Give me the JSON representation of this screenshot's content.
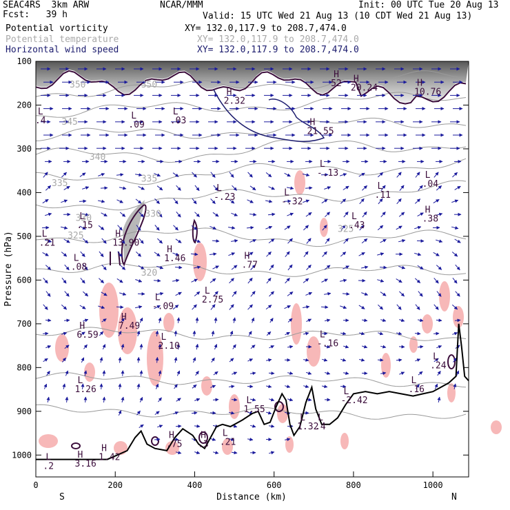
{
  "header": {
    "model": "SEAC4RS  3km ARW",
    "forecast": "Fcst:   39 h",
    "center": "NCAR/MMM",
    "init": "Init: 00 UTC Tue 20 Aug 13",
    "valid": "Valid: 15 UTC Wed 21 Aug 13 (10 CDT Wed 21 Aug 13)",
    "fields": [
      {
        "label": "Potential vorticity",
        "xy": "XY= 132.0,117.9 to 208.7,474.0",
        "color": "#000000"
      },
      {
        "label": "Potential temperature",
        "xy": "XY= 132.0,117.9 to 208.7,474.0",
        "color": "#a9a9a9"
      },
      {
        "label": "Horizontal wind speed",
        "xy": "XY= 132.0,117.9 to 208.7,474.0",
        "color": "#1c1c6e"
      }
    ]
  },
  "chart_data": {
    "type": "cross-section",
    "xlabel": "Distance (km)",
    "ylabel": "Pressure (hPa)",
    "xlim": [
      0,
      1090
    ],
    "ylim": [
      1050,
      100
    ],
    "xticks": [
      0,
      200,
      400,
      600,
      800,
      1000
    ],
    "yticks": [
      100,
      200,
      300,
      400,
      500,
      600,
      700,
      800,
      900,
      1000
    ],
    "end_labels": {
      "left": "S",
      "right": "N"
    },
    "theta_contours": [
      {
        "label": "350",
        "x": 85,
        "p": 160
      },
      {
        "label": "350",
        "x": 265,
        "p": 160
      },
      {
        "label": "345",
        "x": 65,
        "p": 245
      },
      {
        "label": "340",
        "x": 135,
        "p": 325
      },
      {
        "label": "335",
        "x": 40,
        "p": 385
      },
      {
        "label": "335",
        "x": 265,
        "p": 375
      },
      {
        "label": "330",
        "x": 100,
        "p": 465
      },
      {
        "label": "330",
        "x": 275,
        "p": 455
      },
      {
        "label": "325",
        "x": 80,
        "p": 505
      },
      {
        "label": "325",
        "x": 760,
        "p": 490
      },
      {
        "label": "320",
        "x": 265,
        "p": 590
      }
    ],
    "extrema": [
      {
        "type": "H",
        "value": "10.76",
        "x": 960,
        "p": 175
      },
      {
        "type": "H",
        "value": "20.24",
        "x": 800,
        "p": 165
      },
      {
        "type": "H",
        "value": "2.32",
        "x": 480,
        "p": 195
      },
      {
        "type": "H",
        "value": "52",
        "x": 750,
        "p": 155
      },
      {
        "type": "H",
        "value": "21.55",
        "x": 690,
        "p": 265
      },
      {
        "type": "L",
        "value": ".09",
        "x": 240,
        "p": 250
      },
      {
        "type": "L",
        "value": ".03",
        "x": 345,
        "p": 240
      },
      {
        "type": "L",
        "value": ".4",
        "x": 5,
        "p": 240
      },
      {
        "type": "L",
        "value": "-.13",
        "x": 715,
        "p": 360
      },
      {
        "type": "L",
        "value": ".04",
        "x": 980,
        "p": 385
      },
      {
        "type": "L",
        "value": "-.23",
        "x": 455,
        "p": 415
      },
      {
        "type": "L",
        "value": "-.32",
        "x": 625,
        "p": 425
      },
      {
        "type": "L",
        "value": ".11",
        "x": 860,
        "p": 410
      },
      {
        "type": "L",
        "value": ".15",
        "x": 110,
        "p": 480
      },
      {
        "type": "L",
        "value": ".21",
        "x": 15,
        "p": 520
      },
      {
        "type": "H",
        "value": "13.90",
        "x": 200,
        "p": 520
      },
      {
        "type": "L",
        "value": ".43",
        "x": 795,
        "p": 480
      },
      {
        "type": "H",
        "value": ".38",
        "x": 980,
        "p": 465
      },
      {
        "type": "H",
        "value": "1.46",
        "x": 330,
        "p": 555
      },
      {
        "type": "H",
        "value": ".77",
        "x": 525,
        "p": 570
      },
      {
        "type": "L",
        "value": ".08",
        "x": 95,
        "p": 575
      },
      {
        "type": "L",
        "value": "2.75",
        "x": 425,
        "p": 650
      },
      {
        "type": "L",
        "value": "-.09",
        "x": 300,
        "p": 665
      },
      {
        "type": "H",
        "value": "7.49",
        "x": 215,
        "p": 710
      },
      {
        "type": "H",
        "value": "6.59",
        "x": 110,
        "p": 730
      },
      {
        "type": "L",
        "value": "2.10",
        "x": 315,
        "p": 755
      },
      {
        "type": "L",
        "value": "-.16",
        "x": 715,
        "p": 750
      },
      {
        "type": "L",
        "value": ".24",
        "x": 1000,
        "p": 800
      },
      {
        "type": "L",
        "value": "1.26",
        "x": 105,
        "p": 855
      },
      {
        "type": "L",
        "value": ".16",
        "x": 945,
        "p": 855
      },
      {
        "type": "L",
        "value": "-2.42",
        "x": 775,
        "p": 880
      },
      {
        "type": "L",
        "value": "1.55",
        "x": 530,
        "p": 900
      },
      {
        "type": "L",
        "value": "1.32",
        "x": 665,
        "p": 940
      },
      {
        "type": "L",
        "value": ".4",
        "x": 710,
        "p": 940
      },
      {
        "type": "H",
        "value": ".75",
        "x": 335,
        "p": 980
      },
      {
        "type": "H",
        "value": ".3",
        "x": 415,
        "p": 980
      },
      {
        "type": "L",
        "value": ".21",
        "x": 470,
        "p": 975
      },
      {
        "type": "H",
        "value": "1.42",
        "x": 165,
        "p": 1010
      },
      {
        "type": "H",
        "value": "3.16",
        "x": 105,
        "p": 1025
      },
      {
        "type": "L",
        "value": ".2",
        "x": 25,
        "p": 1030
      }
    ]
  }
}
